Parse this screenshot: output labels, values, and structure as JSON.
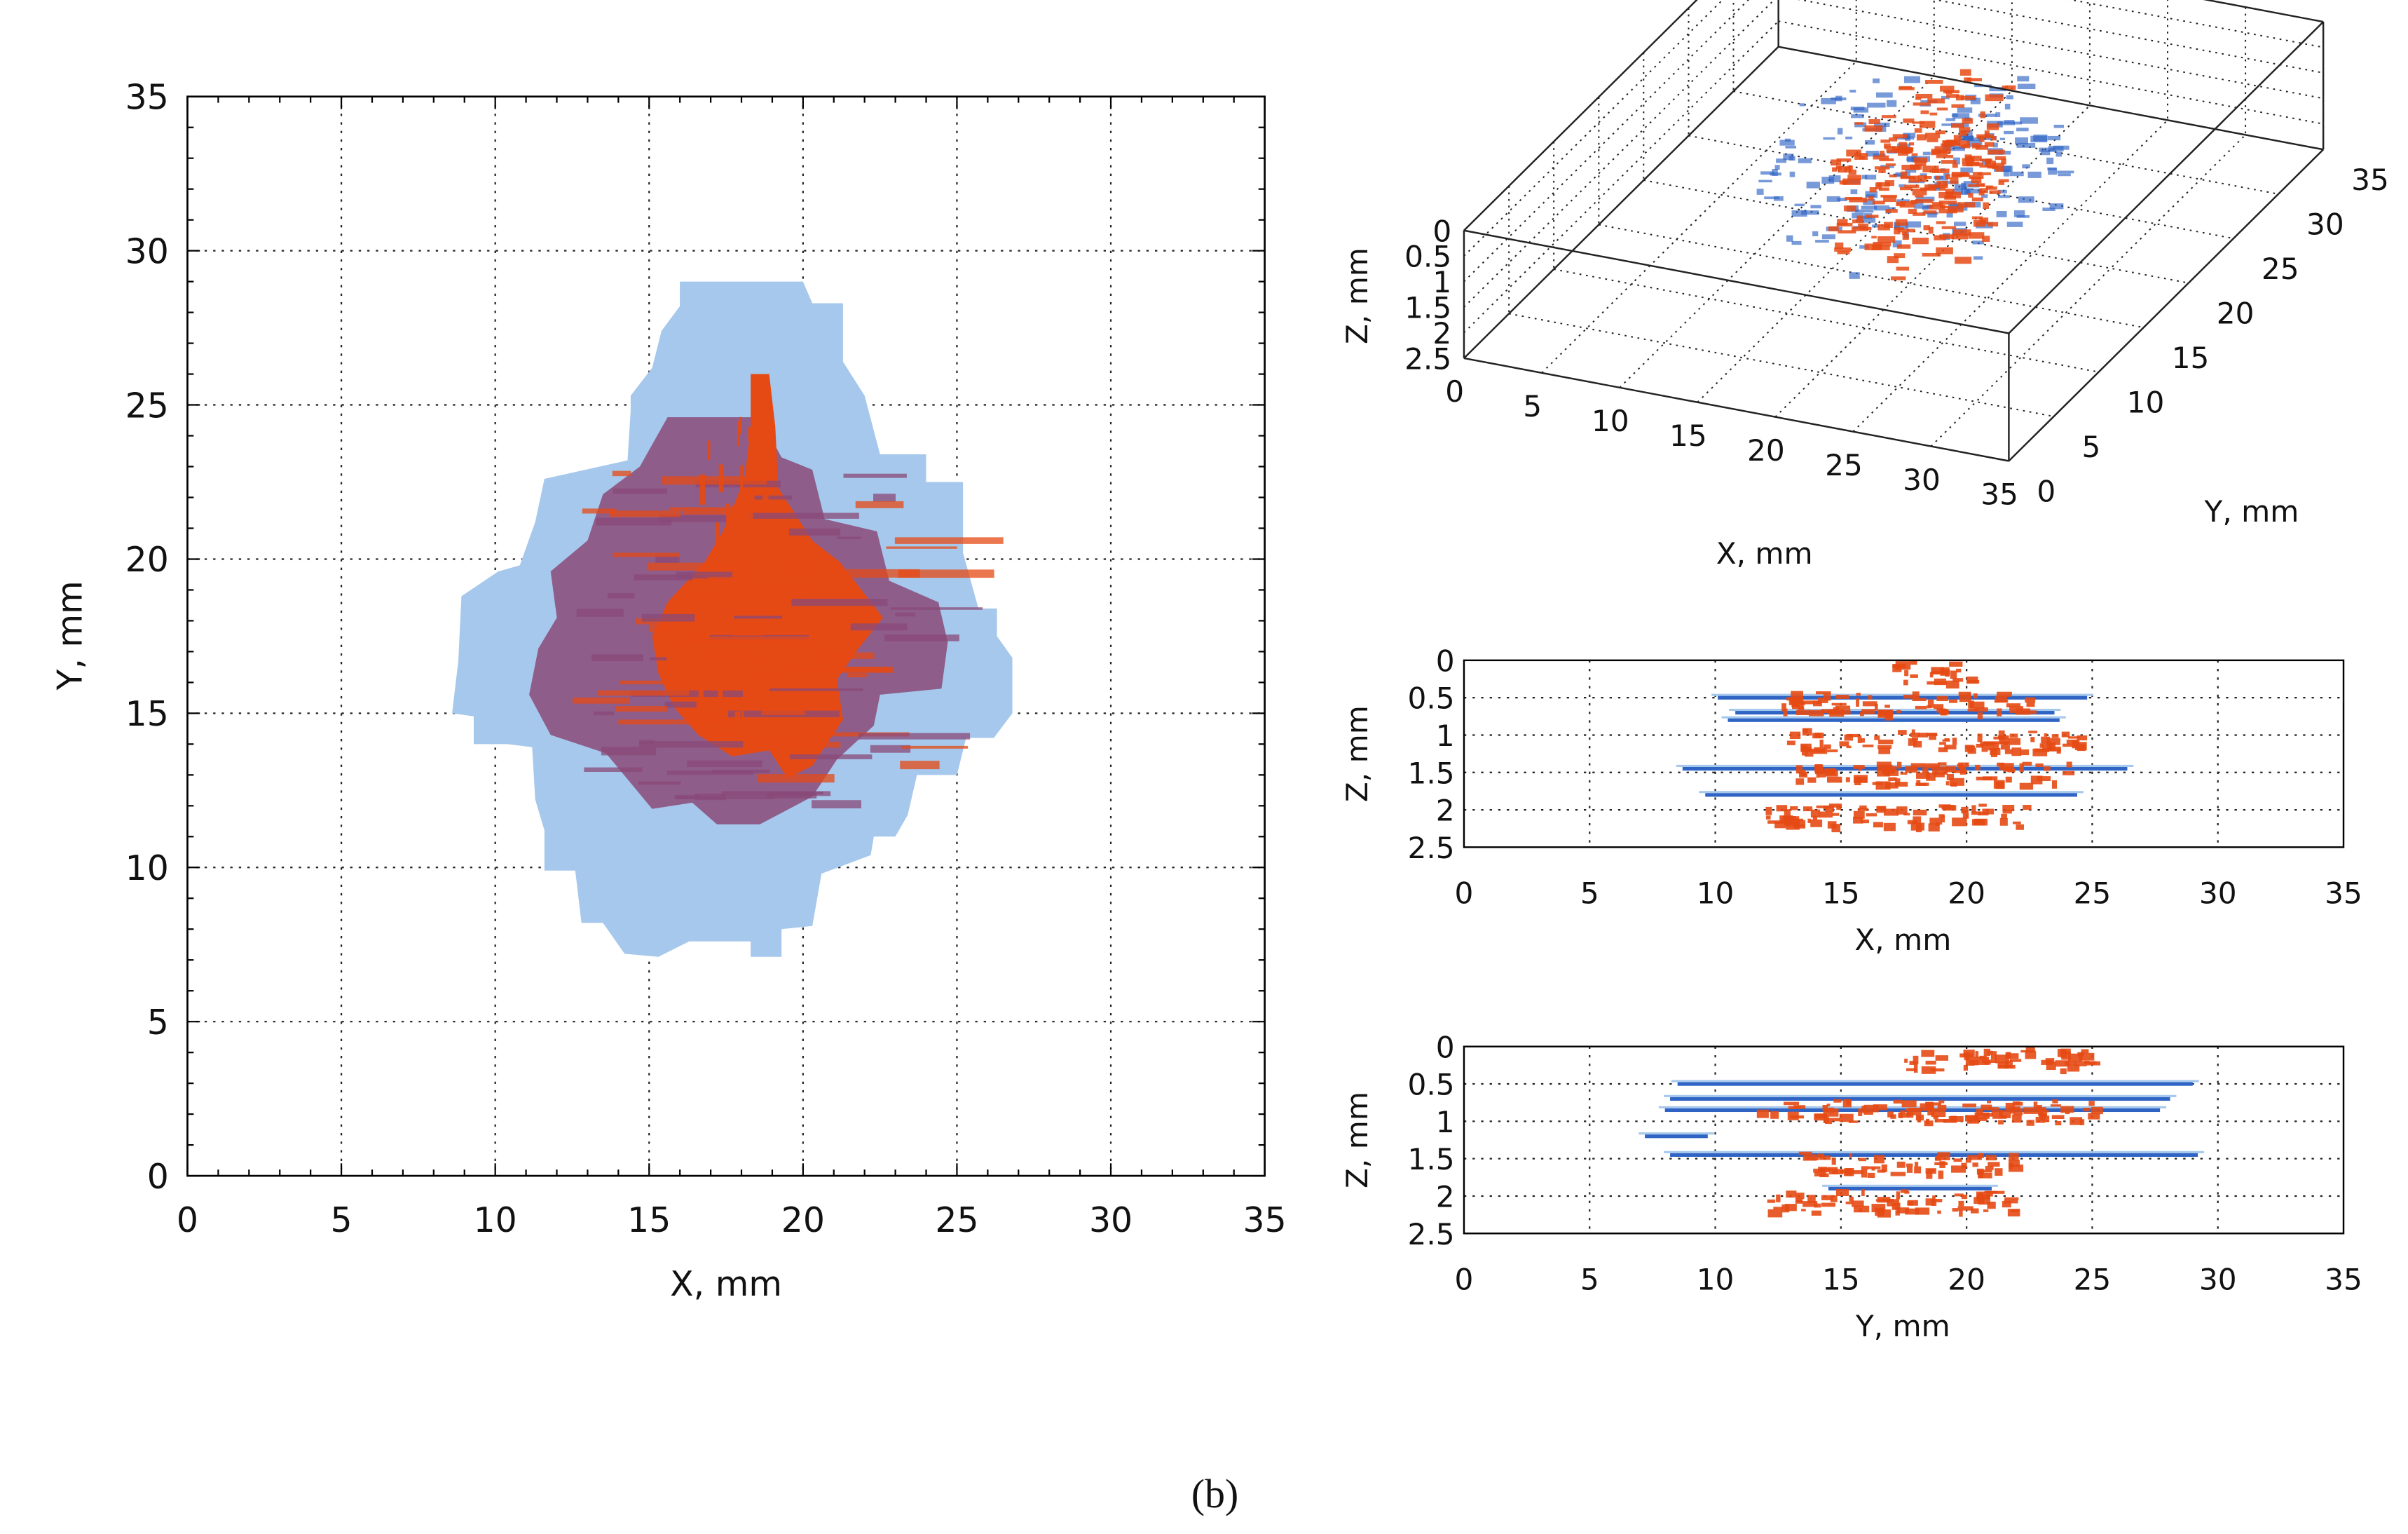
{
  "caption": "(b)",
  "colors": {
    "delam_blue_light": "#a6c8ec",
    "delam_blue_dark": "#2f64c4",
    "damage_red": "#e64a14",
    "damage_purple": "#8a4a78",
    "grid": "#222222"
  },
  "chart_data": [
    {
      "type": "heatmap",
      "view": "plan",
      "xlabel": "X, mm",
      "ylabel": "Y, mm",
      "xlim": [
        0,
        35
      ],
      "ylim": [
        0,
        35
      ],
      "xticks": [
        0,
        5,
        10,
        15,
        20,
        25,
        30,
        35
      ],
      "yticks": [
        0,
        5,
        10,
        15,
        20,
        25,
        30,
        35
      ],
      "grid": true,
      "regions": [
        {
          "name": "",
          "color": "#a6c8ec",
          "polygon": [
            [
              16,
              29
            ],
            [
              20,
              29
            ],
            [
              20.3,
              28.3
            ],
            [
              21.3,
              28.3
            ],
            [
              21.3,
              26.4
            ],
            [
              22,
              25.3
            ],
            [
              22.5,
              23.4
            ],
            [
              24,
              23.4
            ],
            [
              24,
              22.5
            ],
            [
              25.2,
              22.5
            ],
            [
              25.2,
              20.2
            ],
            [
              25.7,
              18.4
            ],
            [
              26.3,
              18.4
            ],
            [
              26.3,
              17.5
            ],
            [
              26.8,
              16.8
            ],
            [
              26.8,
              15
            ],
            [
              26.2,
              14.2
            ],
            [
              25.3,
              14.2
            ],
            [
              25,
              13
            ],
            [
              23.7,
              13
            ],
            [
              23.4,
              11.7
            ],
            [
              23,
              11
            ],
            [
              22.3,
              11
            ],
            [
              22.2,
              10.4
            ],
            [
              20.6,
              9.8
            ],
            [
              20.3,
              8.1
            ],
            [
              19.3,
              8
            ],
            [
              19.3,
              7.1
            ],
            [
              18.3,
              7.1
            ],
            [
              18.3,
              7.6
            ],
            [
              16.3,
              7.6
            ],
            [
              15.3,
              7.1
            ],
            [
              14.2,
              7.2
            ],
            [
              13.5,
              8.2
            ],
            [
              12.8,
              8.2
            ],
            [
              12.6,
              9.9
            ],
            [
              11.6,
              9.9
            ],
            [
              11.6,
              11.2
            ],
            [
              11.3,
              12.2
            ],
            [
              11.2,
              13.9
            ],
            [
              10.4,
              14
            ],
            [
              9.3,
              14
            ],
            [
              9.3,
              14.9
            ],
            [
              8.6,
              15
            ],
            [
              8.8,
              16.7
            ],
            [
              8.9,
              18.8
            ],
            [
              10.1,
              19.6
            ],
            [
              10.8,
              19.8
            ],
            [
              11.3,
              21.2
            ],
            [
              11.6,
              22.6
            ],
            [
              14.3,
              23.2
            ],
            [
              14.4,
              24.8
            ],
            [
              14.4,
              25.3
            ],
            [
              15.1,
              26.2
            ],
            [
              15.4,
              27.4
            ],
            [
              16,
              28.2
            ]
          ]
        },
        {
          "name": "",
          "color": "#8a4a78",
          "polygon": [
            [
              15.6,
              24.6
            ],
            [
              18.6,
              24.6
            ],
            [
              19.3,
              23.3
            ],
            [
              20.3,
              22.9
            ],
            [
              20.7,
              21.3
            ],
            [
              22.4,
              20.9
            ],
            [
              22.8,
              19.3
            ],
            [
              24.4,
              18.6
            ],
            [
              24.7,
              17.3
            ],
            [
              24.5,
              15.8
            ],
            [
              22.5,
              15.6
            ],
            [
              22.3,
              14.6
            ],
            [
              21.1,
              13.5
            ],
            [
              20.3,
              12.3
            ],
            [
              18.6,
              11.4
            ],
            [
              17.2,
              11.4
            ],
            [
              16.4,
              12.1
            ],
            [
              15.1,
              11.9
            ],
            [
              13.6,
              13.7
            ],
            [
              11.8,
              14.3
            ],
            [
              11.1,
              15.6
            ],
            [
              11.4,
              17.1
            ],
            [
              12,
              18.1
            ],
            [
              11.8,
              19.6
            ],
            [
              13,
              20.6
            ],
            [
              13.5,
              22.1
            ],
            [
              14.7,
              23
            ]
          ]
        },
        {
          "name": "",
          "color": "#e64a14",
          "polygon": [
            [
              18.3,
              26
            ],
            [
              18.9,
              26
            ],
            [
              19.1,
              24.3
            ],
            [
              19.2,
              22.3
            ],
            [
              20.3,
              20.6
            ],
            [
              21.2,
              19.9
            ],
            [
              22.6,
              18.1
            ],
            [
              21.8,
              17.1
            ],
            [
              21.1,
              16.1
            ],
            [
              21.3,
              14.8
            ],
            [
              20.3,
              13.3
            ],
            [
              19.5,
              12.9
            ],
            [
              18.9,
              13.8
            ],
            [
              17.7,
              13.6
            ],
            [
              16.6,
              14.3
            ],
            [
              15.8,
              15.2
            ],
            [
              15.3,
              16.3
            ],
            [
              15.1,
              17.5
            ],
            [
              15.6,
              18.6
            ],
            [
              16.8,
              19.9
            ],
            [
              17.4,
              20.9
            ],
            [
              18.1,
              22.6
            ],
            [
              18.3,
              24.3
            ]
          ]
        }
      ]
    },
    {
      "type": "scatter",
      "view": "3d",
      "xlabel": "X, mm",
      "ylabel": "Y, mm",
      "zlabel": "Z, mm",
      "xlim": [
        0,
        35
      ],
      "ylim": [
        0,
        35
      ],
      "zlim": [
        0,
        2.5
      ],
      "xticks": [
        0,
        5,
        10,
        15,
        20,
        25,
        30,
        35
      ],
      "yticks": [
        0,
        5,
        10,
        15,
        20,
        25,
        30,
        35
      ],
      "zticks": [
        "0",
        "0.5",
        "1",
        "1.5",
        "2",
        "2.5"
      ],
      "grid": true,
      "clusters": [
        {
          "color": "#2f64c4",
          "x": [
            9,
            27
          ],
          "y": [
            10,
            27
          ],
          "z": [
            0.4,
            1.5
          ]
        },
        {
          "color": "#e64a14",
          "x": [
            14,
            23
          ],
          "y": [
            12,
            25
          ],
          "z": [
            0,
            2.1
          ]
        }
      ]
    },
    {
      "type": "scatter",
      "view": "xz-section",
      "xlabel": "X, mm",
      "ylabel": "Z, mm",
      "xlim": [
        0,
        35
      ],
      "ylim": [
        0,
        2.5
      ],
      "xticks": [
        0,
        5,
        10,
        15,
        20,
        25,
        30,
        35
      ],
      "yticks": [
        "0",
        "0.5",
        "1",
        "1.5",
        "2",
        "2.5"
      ],
      "grid": true,
      "layers": [
        {
          "color": "#2f64c4",
          "z": 0.5,
          "x_range": [
            10.1,
            24.8
          ]
        },
        {
          "color": "#2f64c4",
          "z": 0.7,
          "x_range": [
            10.8,
            23.5
          ]
        },
        {
          "color": "#2f64c4",
          "z": 0.8,
          "x_range": [
            10.5,
            23.7
          ]
        },
        {
          "color": "#2f64c4",
          "z": 1.45,
          "x_range": [
            8.7,
            26.4
          ]
        },
        {
          "color": "#2f64c4",
          "z": 1.8,
          "x_range": [
            9.6,
            24.4
          ]
        },
        {
          "color": "#e64a14",
          "z": 0.15,
          "x_range": [
            16.9,
            20.1
          ]
        },
        {
          "color": "#e64a14",
          "z": 0.55,
          "x_range": [
            12.5,
            22.5
          ]
        },
        {
          "color": "#e64a14",
          "z": 1.05,
          "x_range": [
            12.7,
            24.5
          ]
        },
        {
          "color": "#e64a14",
          "z": 1.5,
          "x_range": [
            13.2,
            24
          ]
        },
        {
          "color": "#e64a14",
          "z": 2.05,
          "x_range": [
            11.9,
            22.5
          ]
        }
      ]
    },
    {
      "type": "scatter",
      "view": "yz-section",
      "xlabel": "Y, mm",
      "ylabel": "Z, mm",
      "xlim": [
        0,
        35
      ],
      "ylim": [
        0,
        2.5
      ],
      "xticks": [
        0,
        5,
        10,
        15,
        20,
        25,
        30,
        35
      ],
      "yticks": [
        "0",
        "0.5",
        "1",
        "1.5",
        "2",
        "2.5"
      ],
      "grid": true,
      "layers": [
        {
          "color": "#2f64c4",
          "z": 0.5,
          "x_range": [
            8.5,
            29
          ]
        },
        {
          "color": "#2f64c4",
          "z": 0.7,
          "x_range": [
            8.2,
            28.1
          ]
        },
        {
          "color": "#2f64c4",
          "z": 0.85,
          "x_range": [
            8,
            27.7
          ]
        },
        {
          "color": "#2f64c4",
          "z": 1.2,
          "x_range": [
            7.2,
            9.7
          ]
        },
        {
          "color": "#2f64c4",
          "z": 1.45,
          "x_range": [
            8.2,
            29.2
          ]
        },
        {
          "color": "#2f64c4",
          "z": 1.9,
          "x_range": [
            14.5,
            21
          ]
        },
        {
          "color": "#e64a14",
          "z": 0.15,
          "x_range": [
            17.5,
            25
          ]
        },
        {
          "color": "#e64a14",
          "z": 0.85,
          "x_range": [
            11.5,
            25
          ]
        },
        {
          "color": "#e64a14",
          "z": 1.55,
          "x_range": [
            13.2,
            21.7
          ]
        },
        {
          "color": "#e64a14",
          "z": 2.05,
          "x_range": [
            12,
            21.8
          ]
        }
      ]
    }
  ]
}
